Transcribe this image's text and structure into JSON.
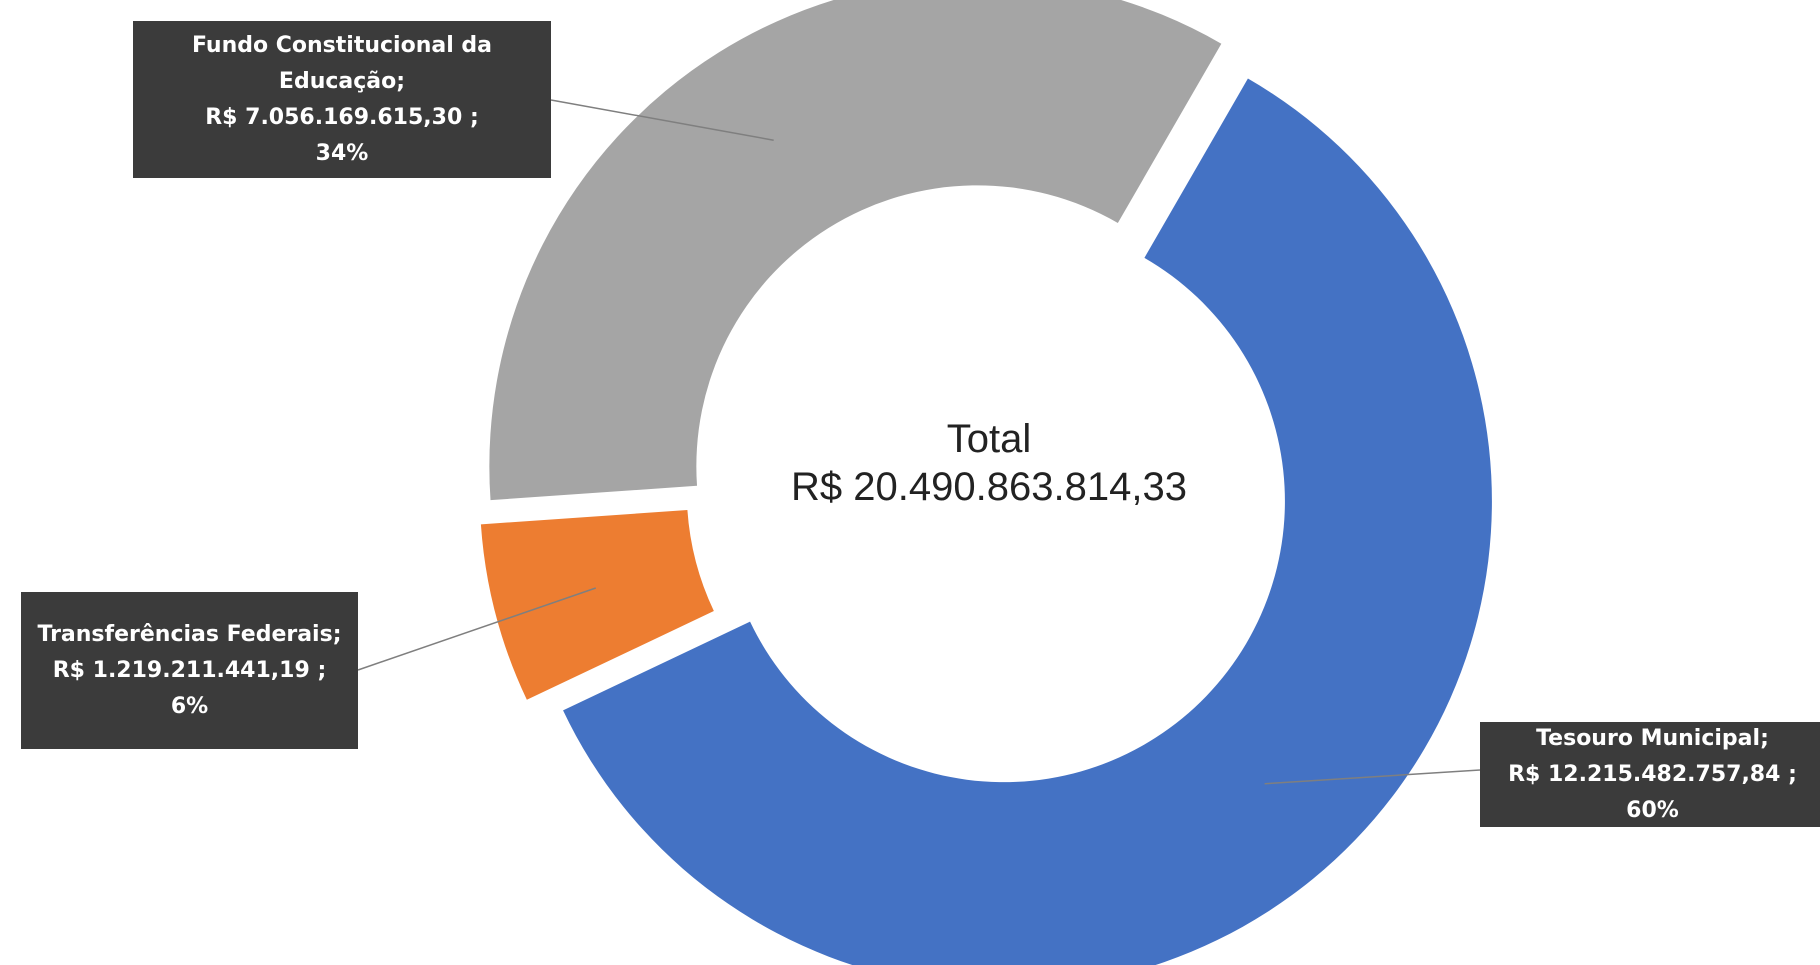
{
  "chart_data": {
    "type": "donut",
    "center_title": "Total",
    "center_value_label": "R$ 20.490.863.814,33",
    "categories": [
      "Tesouro Municipal",
      "Transferências Federais",
      "Fundo Constitucional da Educação"
    ],
    "values": [
      12215482757.84,
      1219211441.19,
      7056169615.3
    ],
    "value_labels": [
      "R$ 12.215.482.757,84",
      "R$ 1.219.211.441,19",
      "R$ 7.056.169.615,30"
    ],
    "percent_labels": [
      "60%",
      "6%",
      "34%"
    ],
    "label_separator": ";",
    "colors": [
      "#4472c4",
      "#ed7d31",
      "#a5a5a5"
    ]
  }
}
